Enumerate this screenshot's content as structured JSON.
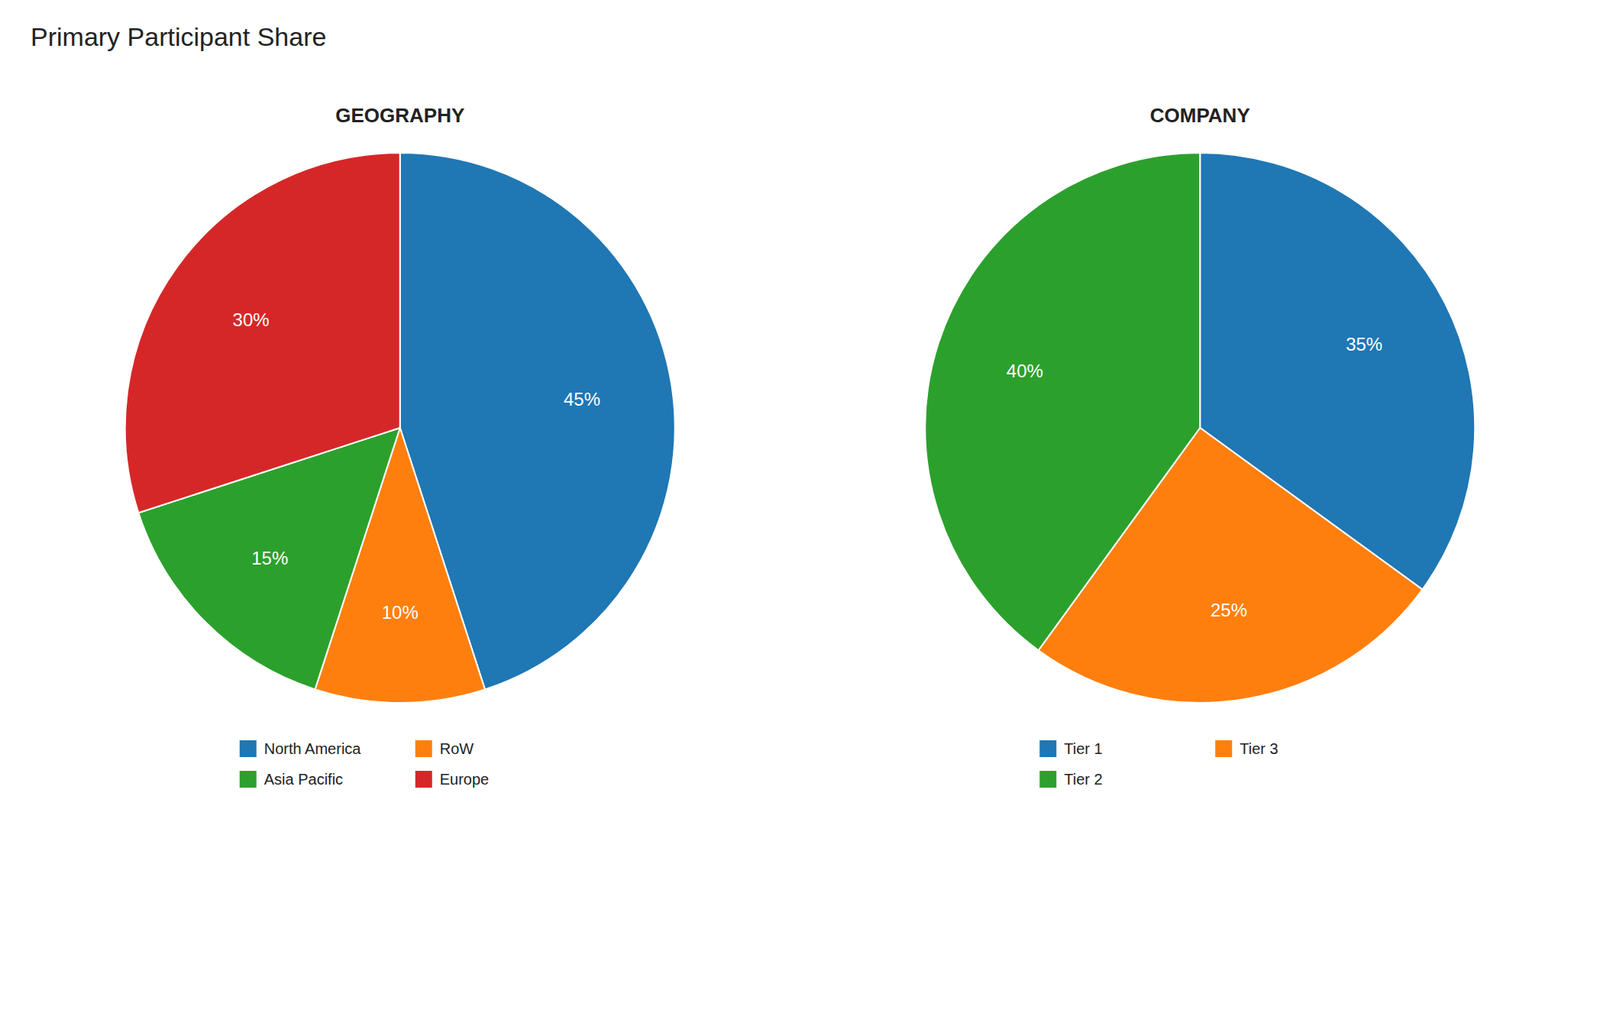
{
  "title": "Primary Participant Share",
  "chart_data": [
    {
      "type": "pie",
      "title": "GEOGRAPHY",
      "categories": [
        "North America",
        "RoW",
        "Asia Pacific",
        "Europe"
      ],
      "values": [
        45,
        10,
        15,
        30
      ],
      "value_labels": [
        "45%",
        "10%",
        "15%",
        "30%"
      ],
      "data_labels": true,
      "legend": "bottom"
    },
    {
      "type": "pie",
      "title": "COMPANY",
      "categories": [
        "Tier 1",
        "Tier 3",
        "Tier 2"
      ],
      "values": [
        35,
        25,
        40
      ],
      "value_labels": [
        "35%",
        "25%",
        "40%"
      ],
      "data_labels": true,
      "legend": "bottom"
    }
  ]
}
